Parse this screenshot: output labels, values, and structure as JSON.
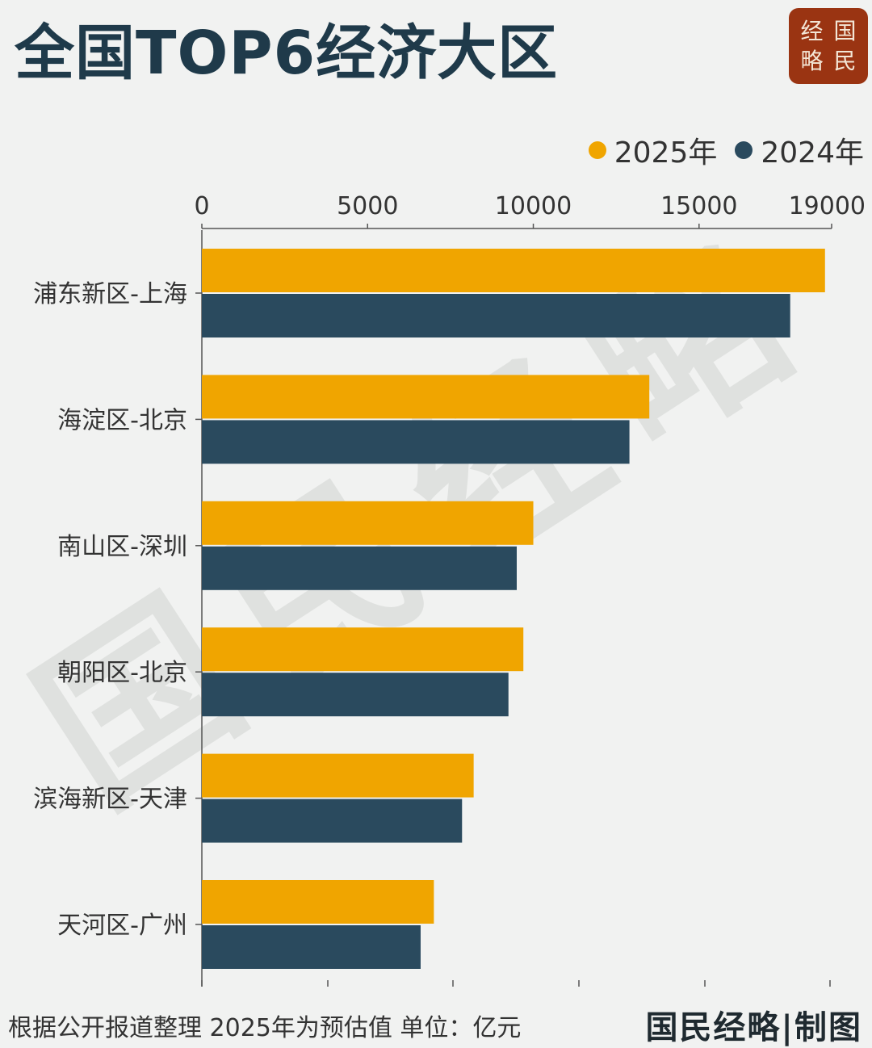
{
  "title": "全国TOP6经济大区",
  "logo": {
    "chars": [
      "经",
      "国",
      "略",
      "民"
    ]
  },
  "colors": {
    "series_2025": "#f0a500",
    "series_2024": "#2a4a5e",
    "title": "#1f3a4a",
    "logo_bg": "#9a3412"
  },
  "chart_data": {
    "type": "bar",
    "orientation": "horizontal",
    "categories": [
      "浦东新区-上海",
      "海淀区-北京",
      "南山区-深圳",
      "朝阳区-北京",
      "滨海新区-天津",
      "天河区-广州"
    ],
    "series": [
      {
        "name": "2025年",
        "values": [
          18800,
          13500,
          10000,
          9700,
          8200,
          7000
        ]
      },
      {
        "name": "2024年",
        "values": [
          17750,
          12900,
          9500,
          9250,
          7850,
          6600
        ]
      }
    ],
    "xticks": [
      "0",
      "5000",
      "10000",
      "15000",
      "19000"
    ],
    "xtick_values": [
      0,
      5000,
      10000,
      15000,
      19000
    ],
    "xlim": [
      0,
      19000
    ],
    "legend_position": "top-right",
    "grid": false
  },
  "watermark": "国民经略",
  "footnote": "根据公开报道整理 2025年为预估值 单位：亿元",
  "credit": "国民经略|制图"
}
